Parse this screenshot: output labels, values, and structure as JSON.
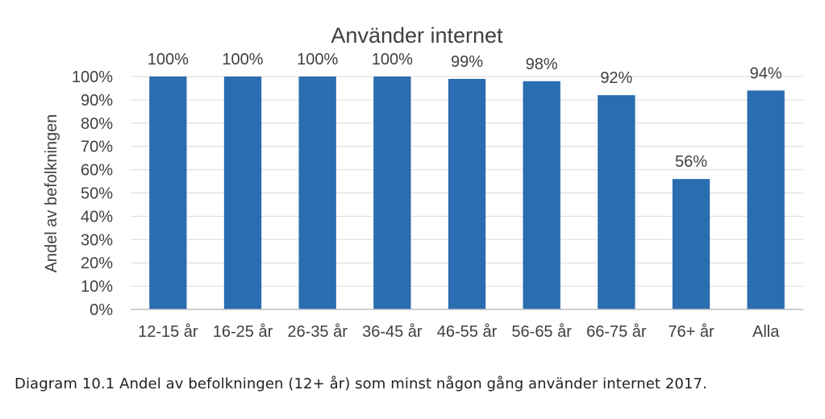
{
  "chart_data": {
    "type": "bar",
    "title": "Använder internet",
    "xlabel": "",
    "ylabel": "Andel av befolkningen",
    "categories": [
      "12-15 år",
      "16-25 år",
      "26-35 år",
      "36-45 år",
      "46-55 år",
      "56-65 år",
      "66-75 år",
      "76+ år",
      "Alla"
    ],
    "values": [
      100,
      100,
      100,
      100,
      99,
      98,
      92,
      56,
      94
    ],
    "data_labels": [
      "100%",
      "100%",
      "100%",
      "100%",
      "99%",
      "98%",
      "92%",
      "56%",
      "94%"
    ],
    "ylim": [
      0,
      100
    ],
    "yticks": [
      0,
      10,
      20,
      30,
      40,
      50,
      60,
      70,
      80,
      90,
      100
    ],
    "ytick_labels": [
      "0%",
      "10%",
      "20%",
      "30%",
      "40%",
      "50%",
      "60%",
      "70%",
      "80%",
      "90%",
      "100%"
    ],
    "grid": true,
    "legend": "none",
    "bar_color": "#2a6db0"
  },
  "caption": "Diagram 10.1 Andel av befolkningen (12+ år) som minst någon gång använder internet 2017."
}
